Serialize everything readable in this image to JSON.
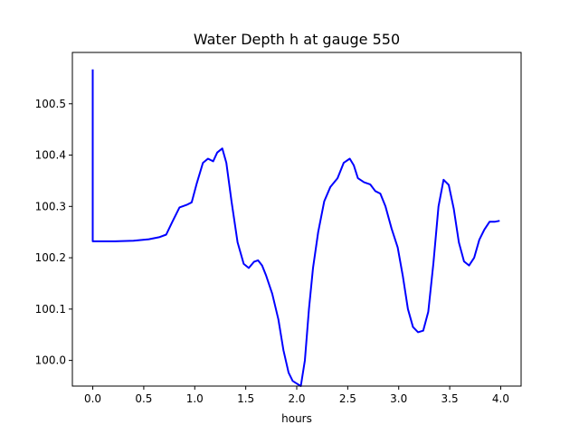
{
  "chart_data": {
    "type": "line",
    "title": "Water Depth h at gauge 550",
    "xlabel": "hours",
    "ylabel": "",
    "xlim": [
      -0.2,
      4.2
    ],
    "ylim": [
      99.95,
      100.6
    ],
    "xticks": [
      0.0,
      0.5,
      1.0,
      1.5,
      2.0,
      2.5,
      3.0,
      3.5,
      4.0
    ],
    "xtick_labels": [
      "0.0",
      "0.5",
      "1.0",
      "1.5",
      "2.0",
      "2.5",
      "3.0",
      "3.5",
      "4.0"
    ],
    "yticks": [
      100.0,
      100.1,
      100.2,
      100.3,
      100.4,
      100.5
    ],
    "ytick_labels": [
      "100.0",
      "100.1",
      "100.2",
      "100.3",
      "100.4",
      "100.5"
    ],
    "grid": false,
    "series": [
      {
        "color": "#0000ff",
        "x": [
          0.0,
          0.0,
          0.0,
          0.2,
          0.4,
          0.55,
          0.65,
          0.72,
          0.78,
          0.85,
          0.92,
          0.97,
          1.02,
          1.08,
          1.13,
          1.18,
          1.22,
          1.27,
          1.31,
          1.36,
          1.42,
          1.48,
          1.53,
          1.58,
          1.62,
          1.66,
          1.7,
          1.76,
          1.82,
          1.87,
          1.92,
          1.96,
          2.0,
          2.04,
          2.08,
          2.12,
          2.16,
          2.21,
          2.27,
          2.33,
          2.4,
          2.46,
          2.52,
          2.56,
          2.6,
          2.66,
          2.72,
          2.77,
          2.82,
          2.87,
          2.93,
          2.99,
          3.04,
          3.09,
          3.14,
          3.19,
          3.24,
          3.29,
          3.34,
          3.39,
          3.44,
          3.49,
          3.54,
          3.59,
          3.64,
          3.69,
          3.74,
          3.79,
          3.84,
          3.89,
          3.94,
          3.99
        ],
        "y": [
          100.567,
          100.232,
          100.232,
          100.232,
          100.233,
          100.236,
          100.24,
          100.245,
          100.27,
          100.298,
          100.303,
          100.308,
          100.345,
          100.385,
          100.393,
          100.388,
          100.405,
          100.413,
          100.385,
          100.31,
          100.23,
          100.188,
          100.18,
          100.192,
          100.195,
          100.185,
          100.165,
          100.13,
          100.08,
          100.02,
          99.976,
          99.96,
          99.955,
          99.95,
          100.0,
          100.1,
          100.18,
          100.25,
          100.31,
          100.338,
          100.355,
          100.385,
          100.393,
          100.38,
          100.355,
          100.347,
          100.343,
          100.33,
          100.325,
          100.3,
          100.257,
          100.22,
          100.165,
          100.1,
          100.065,
          100.055,
          100.058,
          100.095,
          100.19,
          100.3,
          100.352,
          100.342,
          100.295,
          100.23,
          100.193,
          100.185,
          100.2,
          100.235,
          100.255,
          100.27,
          100.27,
          100.272
        ]
      }
    ]
  }
}
